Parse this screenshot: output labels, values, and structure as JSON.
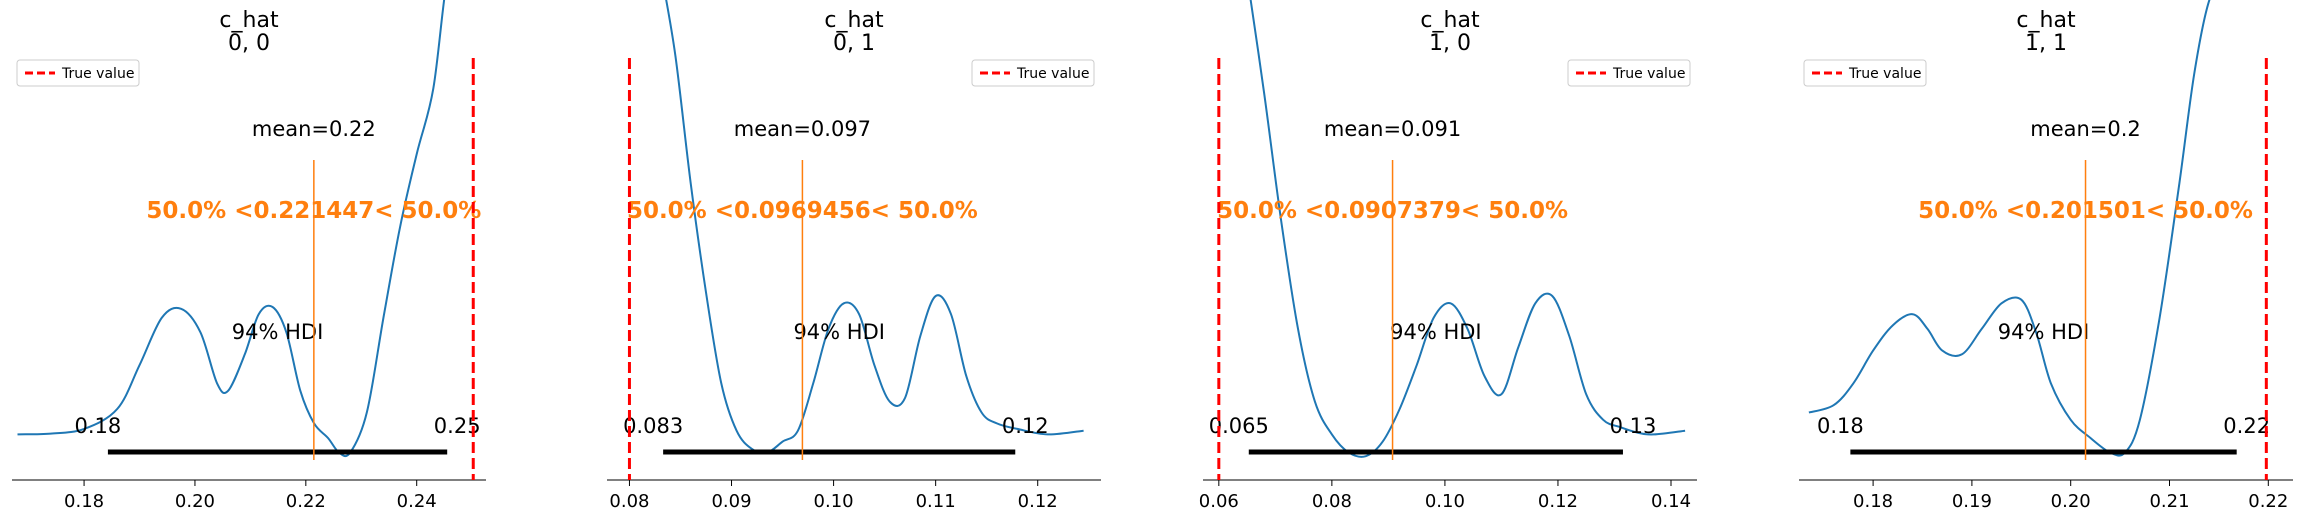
{
  "chart_data": [
    {
      "type": "line",
      "title": "c_hat",
      "subtitle": "0, 0",
      "xlim": [
        0.167,
        0.2525
      ],
      "xticks": [
        0.18,
        0.2,
        0.22,
        0.24
      ],
      "xtick_labels": [
        "0.18",
        "0.20",
        "0.22",
        "0.24"
      ],
      "density": {
        "x": [
          0.168,
          0.174,
          0.18,
          0.186,
          0.19,
          0.194,
          0.1975,
          0.201,
          0.204,
          0.206,
          0.209,
          0.2115,
          0.214,
          0.2165,
          0.219,
          0.2215,
          0.224,
          0.226,
          0.228,
          0.231,
          0.234,
          0.237,
          0.24,
          0.243,
          0.2455,
          0.2475
        ],
        "y": [
          0.01,
          0.012,
          0.025,
          0.08,
          0.2,
          0.33,
          0.355,
          0.29,
          0.15,
          0.13,
          0.23,
          0.34,
          0.36,
          0.29,
          0.13,
          0.04,
          0.0,
          -0.04,
          -0.04,
          0.07,
          0.33,
          0.58,
          0.78,
          0.96,
          1.26,
          1.28
        ]
      },
      "mean_label": "mean=0.22",
      "mean": 0.221447,
      "point_estimate_label": "50.0% <0.221447< 50.0%",
      "hdi_label": "94% HDI",
      "hdi": [
        0.1843,
        0.2455
      ],
      "hdi_low_label": "0.18",
      "hdi_high_label": "0.25",
      "true_value": 0.2502,
      "legend": {
        "label": "True value",
        "position": "upper left"
      }
    },
    {
      "type": "line",
      "title": "c_hat",
      "subtitle": "0, 1",
      "xlim": [
        0.0778,
        0.1262
      ],
      "xticks": [
        0.08,
        0.09,
        0.1,
        0.11,
        0.12
      ],
      "xtick_labels": [
        "0.08",
        "0.09",
        "0.10",
        "0.11",
        "0.12"
      ],
      "density": {
        "x": [
          0.0831,
          0.0845,
          0.086,
          0.0875,
          0.089,
          0.0905,
          0.092,
          0.0935,
          0.095,
          0.0965,
          0.098,
          0.0995,
          0.101,
          0.1025,
          0.104,
          0.1055,
          0.107,
          0.1085,
          0.11,
          0.1115,
          0.113,
          0.1145,
          0.116,
          0.118,
          0.121,
          0.1245
        ],
        "y": [
          1.28,
          1.05,
          0.7,
          0.4,
          0.15,
          0.02,
          -0.03,
          -0.04,
          -0.01,
          0.02,
          0.15,
          0.3,
          0.37,
          0.34,
          0.2,
          0.1,
          0.11,
          0.28,
          0.39,
          0.34,
          0.17,
          0.07,
          0.04,
          0.025,
          0.01,
          0.02
        ]
      },
      "mean_label": "mean=0.097",
      "mean": 0.0969456,
      "point_estimate_label": "50.0% <0.0969456< 50.0%",
      "hdi_label": "94% HDI",
      "hdi": [
        0.0833,
        0.1178
      ],
      "hdi_low_label": "0.083",
      "hdi_high_label": "0.12",
      "true_value": 0.08,
      "legend": {
        "label": "True value",
        "position": "upper right"
      }
    },
    {
      "type": "line",
      "title": "c_hat",
      "subtitle": "1, 0",
      "xlim": [
        0.0572,
        0.1446
      ],
      "xticks": [
        0.06,
        0.08,
        0.1,
        0.12,
        0.14
      ],
      "xtick_labels": [
        "0.06",
        "0.08",
        "0.10",
        "0.12",
        "0.14"
      ],
      "density": {
        "x": [
          0.065,
          0.068,
          0.071,
          0.074,
          0.077,
          0.08,
          0.083,
          0.086,
          0.089,
          0.092,
          0.095,
          0.098,
          0.101,
          0.104,
          0.107,
          0.11,
          0.113,
          0.116,
          0.119,
          0.122,
          0.125,
          0.128,
          0.131,
          0.134,
          0.137,
          0.1425
        ],
        "y": [
          1.27,
          0.95,
          0.6,
          0.3,
          0.1,
          0.01,
          -0.04,
          -0.05,
          -0.01,
          0.08,
          0.2,
          0.33,
          0.37,
          0.3,
          0.17,
          0.12,
          0.25,
          0.37,
          0.39,
          0.28,
          0.12,
          0.05,
          0.03,
          0.015,
          0.01,
          0.02
        ]
      },
      "mean_label": "mean=0.091",
      "mean": 0.0907379,
      "point_estimate_label": "50.0% <0.0907379< 50.0%",
      "hdi_label": "94% HDI",
      "hdi": [
        0.0653,
        0.1315
      ],
      "hdi_low_label": "0.065",
      "hdi_high_label": "0.13",
      "true_value": 0.06,
      "legend": {
        "label": "True value",
        "position": "upper right"
      }
    },
    {
      "type": "line",
      "title": "c_hat",
      "subtitle": "1, 1",
      "xlim": [
        0.1725,
        0.2225
      ],
      "xticks": [
        0.18,
        0.19,
        0.2,
        0.21,
        0.22
      ],
      "xtick_labels": [
        "0.18",
        "0.19",
        "0.20",
        "0.21",
        "0.22"
      ],
      "density": {
        "x": [
          0.1735,
          0.176,
          0.178,
          0.18,
          0.182,
          0.184,
          0.1855,
          0.187,
          0.189,
          0.191,
          0.193,
          0.195,
          0.1965,
          0.198,
          0.2,
          0.202,
          0.204,
          0.2055,
          0.207,
          0.209,
          0.211,
          0.2125,
          0.214,
          0.2155,
          0.2168
        ],
        "y": [
          0.07,
          0.09,
          0.15,
          0.24,
          0.31,
          0.34,
          0.3,
          0.24,
          0.23,
          0.3,
          0.37,
          0.38,
          0.29,
          0.15,
          0.05,
          0.0,
          -0.04,
          -0.04,
          0.05,
          0.33,
          0.7,
          1.0,
          1.2,
          1.26,
          1.28
        ]
      },
      "mean_label": "mean=0.2",
      "mean": 0.201501,
      "point_estimate_label": "50.0% <0.201501< 50.0%",
      "hdi_label": "94% HDI",
      "hdi": [
        0.1777,
        0.2168
      ],
      "hdi_low_label": "0.18",
      "hdi_high_label": "0.22",
      "true_value": 0.2198,
      "legend": {
        "label": "True value",
        "position": "upper left"
      }
    }
  ],
  "colors": {
    "kde": "#1f77b4",
    "point_estimate": "#ff7f0e",
    "true_value": "#ff0000",
    "hdi": "#000000",
    "axis": "#000000"
  }
}
